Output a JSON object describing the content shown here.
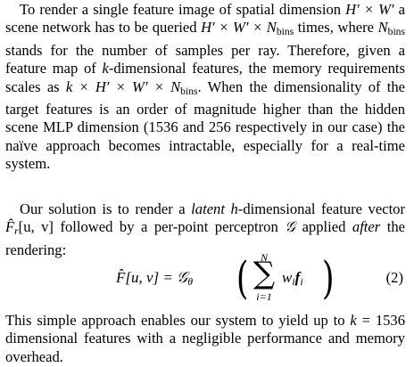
{
  "paragraph1": {
    "t1": "To render a single feature image of spatial dimension ",
    "t2": " a scene network has to be queried ",
    "t3": " times, where ",
    "t4": " stands for the number of samples per ray. Therefore, given a feature map of ",
    "t5": "-dimensional features, the memory requirements scales as ",
    "t6": ". When the dimensionality of the target features is an order of magnitude higher than the hidden scene MLP dimension (1536 and 256 respectively in our case) the naïve approach becomes intractable, especially for a real-time system.",
    "dims": "H′ × W′",
    "query": "H′ × W′ × N",
    "nbins": "N",
    "bins_sub": "bins",
    "k": "k",
    "mem": "k × H′ × W′ × N"
  },
  "paragraph2": {
    "t1": "Our solution is to render a ",
    "latent": "latent",
    "h": "h",
    "t2": "-dimensional feature vector ",
    "Fhat": "F̂",
    "r": "r",
    "uv": "[u, v]",
    "t3": " followed by a per-point perceptron ",
    "G": "𝒢",
    "t4": " applied ",
    "after": "after",
    "t5": " the rendering:"
  },
  "equation": {
    "lhs": "F̂[u, v] = 𝒢",
    "theta": "θ",
    "sum_top": "N",
    "sum_bottom": "i=1",
    "w": "w",
    "i": "i",
    "f": "f",
    "number": "(2)"
  },
  "paragraph3": {
    "t1": "This simple approach enables our system to yield up to ",
    "kval": "k",
    "t2": " = 1536 dimensional features with a negligible performance and memory overhead."
  }
}
